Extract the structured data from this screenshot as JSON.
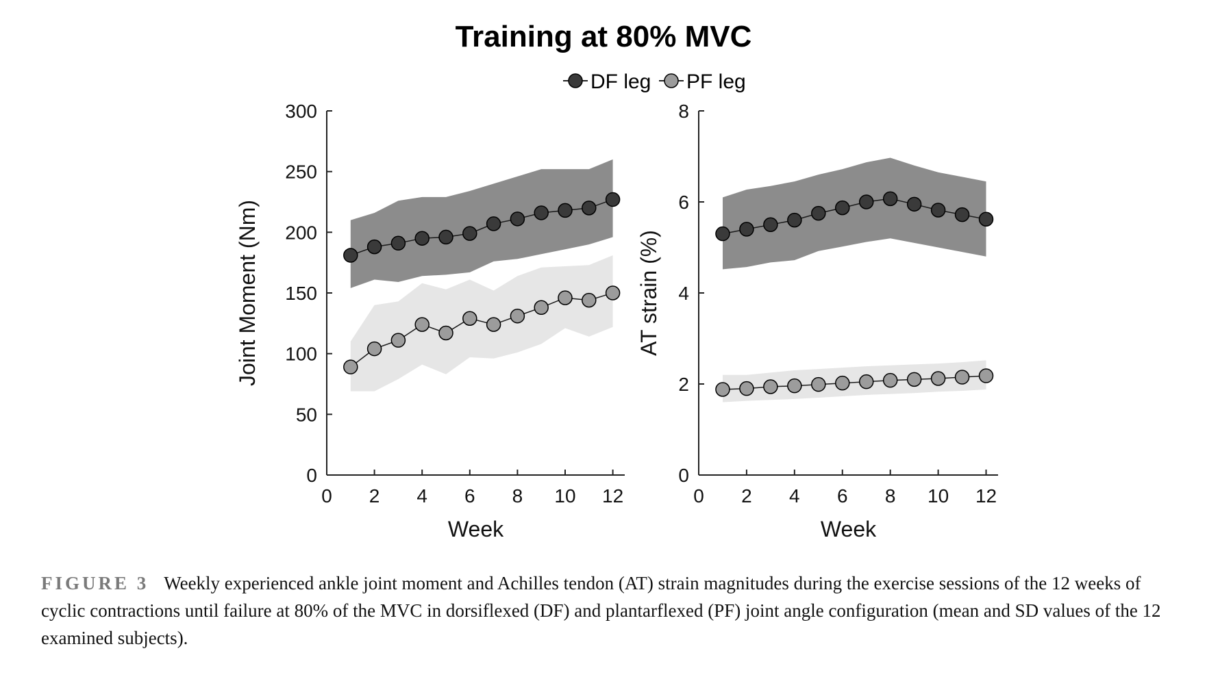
{
  "caption": {
    "label": "FIGURE 3",
    "text": "Weekly experienced ankle joint moment and Achilles tendon (AT) strain magnitudes during the exercise sessions of the 12 weeks of cyclic contractions until failure at 80% of the MVC in dorsiflexed (DF) and plantarflexed (PF) joint angle configuration (mean and SD values of the 12 examined subjects)."
  },
  "colors": {
    "df_marker": "#3a3a3a",
    "df_band": "#8c8c8c",
    "pf_marker": "#9c9c9c",
    "pf_band": "#e6e6e6"
  },
  "chart_data": {
    "title": "Training at 80% MVC",
    "legend": [
      "DF leg",
      "PF leg"
    ],
    "legend_placement": "top-center",
    "panels": [
      {
        "type": "line",
        "xlabel": "Week",
        "ylabel": "Joint Moment (Nm)",
        "xlim": [
          0,
          12.5
        ],
        "ylim": [
          0,
          300
        ],
        "xticks": [
          "0",
          "2",
          "4",
          "6",
          "8",
          "10",
          "12"
        ],
        "yticks": [
          "0",
          "50",
          "100",
          "150",
          "200",
          "250",
          "300"
        ],
        "grid": false,
        "x": [
          1,
          2,
          3,
          4,
          5,
          6,
          7,
          8,
          9,
          10,
          11,
          12
        ],
        "series": [
          {
            "name": "DF leg",
            "values": [
              181,
              188,
              191,
              195,
              196,
              199,
              207,
              211,
              216,
              218,
              220,
              227
            ],
            "upper": [
              210,
              216,
              226,
              229,
              229,
              234,
              240,
              246,
              252,
              252,
              252,
              260
            ],
            "lower": [
              154,
              161,
              159,
              164,
              165,
              167,
              176,
              178,
              182,
              186,
              190,
              196
            ]
          },
          {
            "name": "PF leg",
            "values": [
              89,
              104,
              111,
              124,
              117,
              129,
              124,
              131,
              138,
              146,
              144,
              150
            ],
            "upper": [
              110,
              140,
              143,
              158,
              153,
              161,
              152,
              164,
              171,
              172,
              173,
              181
            ],
            "lower": [
              69,
              69,
              79,
              91,
              83,
              97,
              96,
              101,
              108,
              121,
              114,
              122
            ]
          }
        ]
      },
      {
        "type": "line",
        "xlabel": "Week",
        "ylabel": "AT strain (%)",
        "xlim": [
          0,
          12.5
        ],
        "ylim": [
          0,
          8
        ],
        "xticks": [
          "0",
          "2",
          "4",
          "6",
          "8",
          "10",
          "12"
        ],
        "yticks": [
          "0",
          "2",
          "4",
          "6",
          "8"
        ],
        "grid": false,
        "x": [
          1,
          2,
          3,
          4,
          5,
          6,
          7,
          8,
          9,
          10,
          11,
          12
        ],
        "series": [
          {
            "name": "DF leg",
            "values": [
              5.3,
              5.4,
              5.5,
              5.6,
              5.75,
              5.87,
              6.0,
              6.07,
              5.95,
              5.82,
              5.72,
              5.62
            ],
            "upper": [
              6.1,
              6.27,
              6.35,
              6.45,
              6.6,
              6.72,
              6.87,
              6.97,
              6.8,
              6.65,
              6.55,
              6.45
            ],
            "lower": [
              4.52,
              4.57,
              4.67,
              4.72,
              4.92,
              5.02,
              5.12,
              5.2,
              5.1,
              5.0,
              4.9,
              4.8
            ]
          },
          {
            "name": "PF leg",
            "values": [
              1.88,
              1.9,
              1.94,
              1.96,
              1.99,
              2.02,
              2.05,
              2.08,
              2.1,
              2.12,
              2.15,
              2.18
            ],
            "upper": [
              2.2,
              2.2,
              2.25,
              2.3,
              2.33,
              2.36,
              2.39,
              2.41,
              2.43,
              2.45,
              2.48,
              2.52
            ],
            "lower": [
              1.6,
              1.63,
              1.65,
              1.67,
              1.7,
              1.73,
              1.76,
              1.78,
              1.8,
              1.83,
              1.85,
              1.88
            ]
          }
        ]
      }
    ]
  }
}
